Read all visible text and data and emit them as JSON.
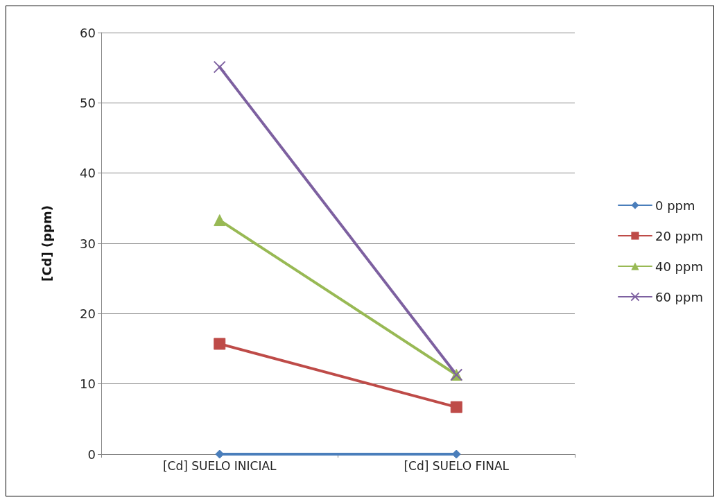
{
  "chart_data": {
    "type": "line",
    "ylabel": "[Cd] (ppm)",
    "categories": [
      "[Cd] SUELO INICIAL",
      "[Cd] SUELO FINAL"
    ],
    "series": [
      {
        "name": "0 ppm",
        "color": "#4a7ebb",
        "marker": "diamond",
        "values": [
          0,
          0
        ]
      },
      {
        "name": "20 ppm",
        "color": "#be4b48",
        "marker": "square",
        "values": [
          15.7,
          6.7
        ]
      },
      {
        "name": "40 ppm",
        "color": "#98b954",
        "marker": "triangle",
        "values": [
          33.3,
          11.3
        ]
      },
      {
        "name": "60 ppm",
        "color": "#7d60a0",
        "marker": "cross",
        "values": [
          55.1,
          11.3
        ]
      }
    ],
    "ylim": [
      0,
      60
    ],
    "yticks": [
      0,
      10,
      20,
      30,
      40,
      50,
      60
    ],
    "grid": "y",
    "legend": "right",
    "line_style": "solid"
  }
}
